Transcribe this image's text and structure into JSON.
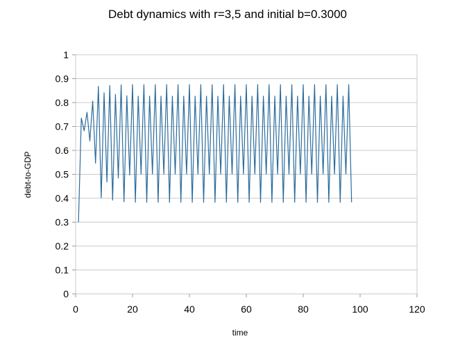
{
  "chart_data": {
    "type": "line",
    "title": "Debt dynamics with r=3,5 and initial b=0.3000",
    "xlabel": "time",
    "ylabel": "debt-to-GDP",
    "xlim": [
      0,
      120
    ],
    "ylim": [
      0,
      1
    ],
    "x_ticks": [
      "0",
      "20",
      "40",
      "60",
      "80",
      "100",
      "120"
    ],
    "y_ticks": [
      "0",
      "0.1",
      "0.2",
      "0.3",
      "0.4",
      "0.5",
      "0.6",
      "0.7",
      "0.8",
      "0.9",
      "1"
    ],
    "grid": "horizontal",
    "legend": "none",
    "series_color": "#2a6b9c",
    "series": [
      {
        "x": [
          1,
          2,
          3,
          4,
          5,
          6,
          7,
          8,
          9,
          10,
          11,
          12,
          13,
          14,
          15,
          16,
          17,
          18,
          19,
          20,
          21,
          22,
          23,
          24,
          25,
          26,
          27,
          28,
          29,
          30,
          31,
          32,
          33,
          34,
          35,
          36,
          37,
          38,
          39,
          40,
          41,
          42,
          43,
          44,
          45,
          46,
          47,
          48,
          49,
          50,
          51,
          52,
          53,
          54,
          55,
          56,
          57,
          58,
          59,
          60,
          61,
          62,
          63,
          64,
          65,
          66,
          67,
          68,
          69,
          70,
          71,
          72,
          73,
          74,
          75,
          76,
          77,
          78,
          79,
          80,
          81,
          82,
          83,
          84,
          85,
          86,
          87,
          88,
          89,
          90,
          91,
          92,
          93,
          94,
          95,
          96,
          97
        ],
        "values": [
          0.3,
          0.735,
          0.6818,
          0.7594,
          0.6396,
          0.8064,
          0.5465,
          0.8677,
          0.4018,
          0.8411,
          0.4677,
          0.8714,
          0.3919,
          0.8341,
          0.4845,
          0.8741,
          0.385,
          0.8287,
          0.4968,
          0.8749,
          0.383,
          0.827,
          0.5008,
          0.875,
          0.3828,
          0.8269,
          0.501,
          0.875,
          0.3828,
          0.8269,
          0.501,
          0.875,
          0.3828,
          0.8269,
          0.501,
          0.875,
          0.3828,
          0.8269,
          0.501,
          0.875,
          0.3828,
          0.8269,
          0.501,
          0.875,
          0.3828,
          0.8269,
          0.501,
          0.875,
          0.3828,
          0.8269,
          0.501,
          0.875,
          0.3828,
          0.8269,
          0.501,
          0.875,
          0.3828,
          0.8269,
          0.501,
          0.875,
          0.3828,
          0.8269,
          0.501,
          0.875,
          0.3828,
          0.8269,
          0.501,
          0.875,
          0.3828,
          0.8269,
          0.501,
          0.875,
          0.3828,
          0.8269,
          0.501,
          0.875,
          0.3828,
          0.8269,
          0.501,
          0.875,
          0.3828,
          0.8269,
          0.501,
          0.875,
          0.3828,
          0.8269,
          0.501,
          0.875,
          0.3828,
          0.8269,
          0.501,
          0.875,
          0.3828,
          0.8269,
          0.501,
          0.875,
          0.3828
        ]
      }
    ]
  }
}
